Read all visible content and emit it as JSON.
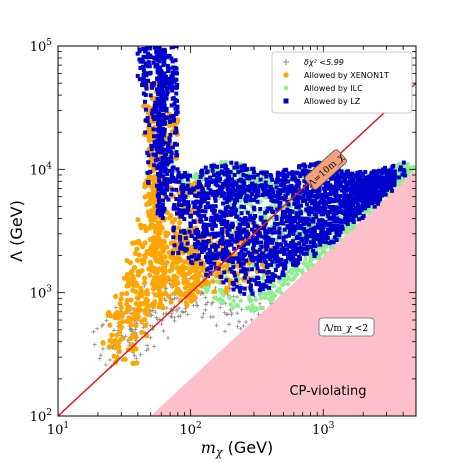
{
  "chart_data": {
    "type": "scatter",
    "xlabel": "m",
    "xlabel_sub": "χ",
    "xlabel_unit": " (GeV)",
    "ylabel": "Λ (GeV)",
    "x_scale": "log",
    "y_scale": "log",
    "xlim": [
      10,
      5000
    ],
    "ylim": [
      100,
      100000
    ],
    "x_ticks": [
      {
        "base": "10",
        "exp": "1"
      },
      {
        "base": "10",
        "exp": "2"
      },
      {
        "base": "10",
        "exp": "3"
      }
    ],
    "y_ticks": [
      {
        "base": "10",
        "exp": "2"
      },
      {
        "base": "10",
        "exp": "3"
      },
      {
        "base": "10",
        "exp": "4"
      },
      {
        "base": "10",
        "exp": "5"
      }
    ],
    "grid": false,
    "legend_position": "top-right",
    "legend": [
      {
        "label": "δχ² <5.99",
        "marker": "plus",
        "color": "#8c8c8c"
      },
      {
        "label": "Allowed by XENON1T",
        "marker": "circle",
        "color": "#ffa500"
      },
      {
        "label": "Allowed by ILC",
        "marker": "circle",
        "color": "#90ee90"
      },
      {
        "label": "Allowed by LZ",
        "marker": "square",
        "color": "#0000cd"
      }
    ],
    "lines": [
      {
        "label": "Λ=10m_χ",
        "color": "#e31a1c",
        "points": [
          [
            10,
            100
          ],
          [
            5000,
            50000
          ]
        ]
      }
    ],
    "regions": [
      {
        "label": "CP-violating",
        "color": "#ffc0cb",
        "boundary": "Λ = 2 m_χ",
        "side": "below"
      }
    ],
    "annotations": [
      "Λ/m_χ <2"
    ],
    "series": [
      {
        "name": "Allowed by ILC",
        "color": "#90ee90",
        "x": [
          100,
          150,
          200,
          250,
          300,
          400,
          500,
          600,
          800,
          1000,
          1500,
          2000,
          3000,
          4000,
          200,
          300,
          500,
          800,
          1000,
          1500,
          2000,
          3000,
          4000
        ],
        "y": [
          10000,
          11000,
          9000,
          8000,
          6000,
          5000,
          4000,
          3500,
          3000,
          3000,
          3500,
          4500,
          6500,
          8500,
          2000,
          1700,
          1500,
          1800,
          2200,
          3300,
          4300,
          6200,
          8200
        ]
      },
      {
        "name": "Allowed by LZ",
        "color": "#0000cd",
        "x": [
          55,
          57,
          58,
          60,
          62,
          65,
          90,
          120,
          150,
          200,
          250,
          300,
          400,
          500,
          600,
          800,
          1000,
          1500,
          2000,
          2500,
          3000,
          100,
          150,
          200,
          300,
          500,
          800,
          1000,
          1500,
          2000
        ],
        "y": [
          90000,
          80000,
          60000,
          40000,
          20000,
          10000,
          9000,
          9500,
          9000,
          9500,
          9000,
          9500,
          9000,
          9500,
          9000,
          9500,
          9000,
          9500,
          9000,
          8500,
          9000,
          3500,
          3000,
          2800,
          2500,
          2800,
          3200,
          3800,
          5500,
          6500
        ]
      },
      {
        "name": "Allowed by XENON1T",
        "color": "#ffa500",
        "x": [
          30,
          35,
          40,
          45,
          50,
          55,
          58,
          60,
          62,
          65,
          70,
          80,
          100,
          120,
          150,
          200,
          300
        ],
        "y": [
          420,
          600,
          900,
          1200,
          1600,
          2500,
          5000,
          20000,
          30000,
          3000,
          1500,
          1200,
          1500,
          1800,
          1700,
          2000,
          2300
        ]
      },
      {
        "name": "δχ² <5.99",
        "color": "#8c8c8c",
        "x": [
          25,
          30,
          35,
          40,
          50,
          60,
          70,
          80,
          100,
          120,
          150,
          200,
          300
        ],
        "y": [
          420,
          450,
          500,
          600,
          700,
          800,
          900,
          1000,
          1100,
          1000,
          900,
          800,
          700
        ]
      }
    ]
  }
}
